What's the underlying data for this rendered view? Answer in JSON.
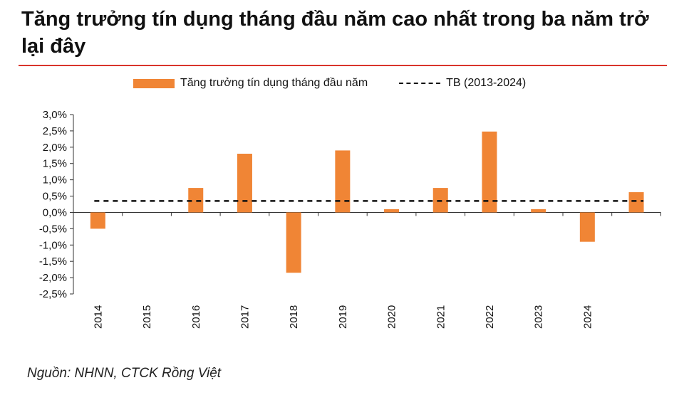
{
  "title": "Tăng trưởng tín dụng tháng đầu năm cao nhất trong ba năm trở lại đây",
  "source": "Nguồn: NHNN, CTCK Rồng Việt",
  "colors": {
    "bar": "#f08535",
    "rule": "#d9342b",
    "average_line": "#111111"
  },
  "chart_data": {
    "type": "bar",
    "categories": [
      "2014",
      "2015",
      "2016",
      "2017",
      "2018",
      "2019",
      "2020",
      "2021",
      "2022",
      "2023",
      "2024",
      ""
    ],
    "series": [
      {
        "name": "Tăng trưởng tín dụng tháng đầu năm",
        "values": [
          -0.5,
          0.0,
          0.75,
          1.8,
          -1.85,
          1.9,
          0.1,
          0.75,
          2.48,
          0.1,
          -0.9,
          0.62
        ]
      },
      {
        "name": "TB (2013-2024)",
        "type": "line",
        "style": "dashed",
        "value": 0.35
      }
    ],
    "yticks": [
      "3,0%",
      "2,5%",
      "2,0%",
      "1,5%",
      "1,0%",
      "0,5%",
      "0,0%",
      "-0,5%",
      "-1,0%",
      "-1,5%",
      "-2,0%",
      "-2,5%"
    ],
    "ylim": [
      -2.5,
      3.0
    ],
    "legend": "top",
    "grid": false
  }
}
